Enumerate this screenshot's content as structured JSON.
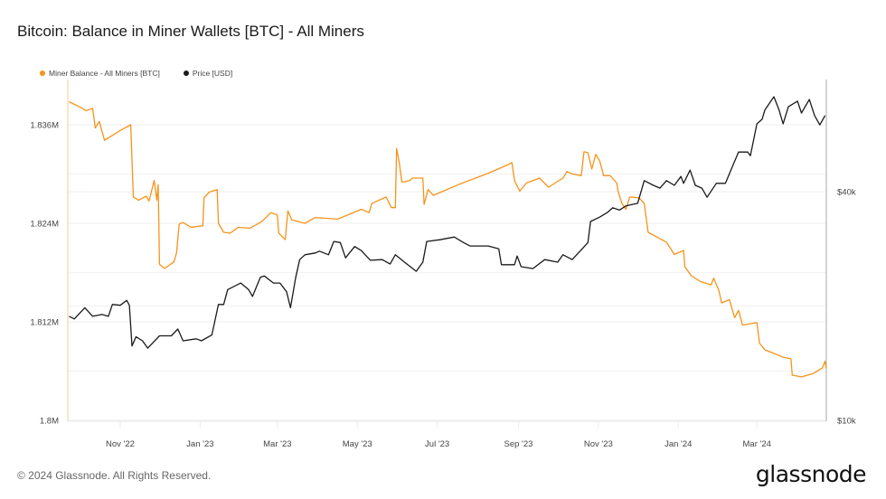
{
  "title": "Bitcoin: Balance in Miner Wallets [BTC] - All Miners",
  "footer": "© 2024 Glassnode. All Rights Reserved.",
  "logo": "glassnode",
  "chart_data": {
    "type": "line",
    "title": "Bitcoin: Balance in Miner Wallets [BTC] - All Miners",
    "legend_position": "top-left",
    "grid": true,
    "xlim": [
      "2022-09-22",
      "2024-04-23"
    ],
    "x_ticks": [
      {
        "date": "2022-11-01",
        "label": "Nov '22"
      },
      {
        "date": "2023-01-01",
        "label": "Jan '23"
      },
      {
        "date": "2023-03-01",
        "label": "Mar '23"
      },
      {
        "date": "2023-05-01",
        "label": "May '23"
      },
      {
        "date": "2023-07-01",
        "label": "Jul '23"
      },
      {
        "date": "2023-09-01",
        "label": "Sep '23"
      },
      {
        "date": "2023-11-01",
        "label": "Nov '23"
      },
      {
        "date": "2024-01-01",
        "label": "Jan '24"
      },
      {
        "date": "2024-03-01",
        "label": "Mar '24"
      }
    ],
    "y_left": {
      "scale": "linear",
      "unit": "M BTC",
      "ylim": [
        1.8,
        1.8415
      ],
      "ticks": [
        {
          "value": 1.8,
          "label": "1.8M"
        },
        {
          "value": 1.812,
          "label": "1.812M"
        },
        {
          "value": 1.824,
          "label": "1.824M"
        },
        {
          "value": 1.836,
          "label": "1.836M"
        }
      ],
      "gridlines": [
        1.8,
        1.806,
        1.812,
        1.818,
        1.824,
        1.83,
        1.836
      ]
    },
    "y_right": {
      "scale": "log",
      "unit": "USD",
      "ylim": [
        10000,
        79000
      ],
      "ticks": [
        {
          "value": 10000,
          "label": "$10k"
        },
        {
          "value": 40000,
          "label": "$40k"
        }
      ],
      "gridlines": [
        20000,
        40000
      ]
    },
    "series": [
      {
        "name": "Miner Balance - All Miners [BTC]",
        "axis": "left",
        "color": "#f7931a",
        "points": [
          [
            "2022-09-23",
            1.8388
          ],
          [
            "2022-10-02",
            1.8381
          ],
          [
            "2022-10-06",
            1.8377
          ],
          [
            "2022-10-11",
            1.838
          ],
          [
            "2022-10-13",
            1.8356
          ],
          [
            "2022-10-16",
            1.8364
          ],
          [
            "2022-10-20",
            1.8341
          ],
          [
            "2022-10-26",
            1.8347
          ],
          [
            "2022-11-01",
            1.8353
          ],
          [
            "2022-11-09",
            1.836
          ],
          [
            "2022-11-11",
            1.8272
          ],
          [
            "2022-11-15",
            1.8268
          ],
          [
            "2022-11-21",
            1.8273
          ],
          [
            "2022-11-23",
            1.8267
          ],
          [
            "2022-11-27",
            1.8292
          ],
          [
            "2022-11-29",
            1.8268
          ],
          [
            "2022-11-30",
            1.8287
          ],
          [
            "2022-12-01",
            1.819
          ],
          [
            "2022-12-05",
            1.8185
          ],
          [
            "2022-12-12",
            1.8193
          ],
          [
            "2022-12-14",
            1.8204
          ],
          [
            "2022-12-16",
            1.8239
          ],
          [
            "2022-12-19",
            1.8241
          ],
          [
            "2022-12-25",
            1.8235
          ],
          [
            "2023-01-03",
            1.8237
          ],
          [
            "2023-01-04",
            1.8271
          ],
          [
            "2023-01-08",
            1.8278
          ],
          [
            "2023-01-14",
            1.8281
          ],
          [
            "2023-01-15",
            1.824
          ],
          [
            "2023-01-19",
            1.8229
          ],
          [
            "2023-01-24",
            1.8228
          ],
          [
            "2023-01-30",
            1.8235
          ],
          [
            "2023-02-08",
            1.8234
          ],
          [
            "2023-02-17",
            1.8242
          ],
          [
            "2023-02-24",
            1.8253
          ],
          [
            "2023-03-01",
            1.825
          ],
          [
            "2023-03-02",
            1.8228
          ],
          [
            "2023-03-07",
            1.822
          ],
          [
            "2023-03-09",
            1.8255
          ],
          [
            "2023-03-12",
            1.8244
          ],
          [
            "2023-03-22",
            1.824
          ],
          [
            "2023-03-30",
            1.8247
          ],
          [
            "2023-04-16",
            1.8245
          ],
          [
            "2023-05-04",
            1.8257
          ],
          [
            "2023-05-10",
            1.8253
          ],
          [
            "2023-05-12",
            1.8264
          ],
          [
            "2023-05-23",
            1.8272
          ],
          [
            "2023-05-27",
            1.8259
          ],
          [
            "2023-05-30",
            1.8259
          ],
          [
            "2023-05-31",
            1.8331
          ],
          [
            "2023-06-02",
            1.8314
          ],
          [
            "2023-06-04",
            1.829
          ],
          [
            "2023-06-10",
            1.8292
          ],
          [
            "2023-06-12",
            1.8295
          ],
          [
            "2023-06-20",
            1.8295
          ],
          [
            "2023-06-21",
            1.8263
          ],
          [
            "2023-06-24",
            1.8281
          ],
          [
            "2023-06-28",
            1.8274
          ],
          [
            "2023-07-17",
            1.8287
          ],
          [
            "2023-08-09",
            1.8301
          ],
          [
            "2023-08-25",
            1.8312
          ],
          [
            "2023-08-27",
            1.8314
          ],
          [
            "2023-08-29",
            1.8292
          ],
          [
            "2023-09-02",
            1.8279
          ],
          [
            "2023-09-07",
            1.8289
          ],
          [
            "2023-09-17",
            1.8295
          ],
          [
            "2023-09-24",
            1.8284
          ],
          [
            "2023-10-05",
            1.8295
          ],
          [
            "2023-10-08",
            1.8303
          ],
          [
            "2023-10-12",
            1.83
          ],
          [
            "2023-10-19",
            1.8298
          ],
          [
            "2023-10-21",
            1.8327
          ],
          [
            "2023-10-24",
            1.8326
          ],
          [
            "2023-10-27",
            1.8306
          ],
          [
            "2023-10-30",
            1.8324
          ],
          [
            "2023-11-02",
            1.8316
          ],
          [
            "2023-11-05",
            1.8298
          ],
          [
            "2023-11-10",
            1.8298
          ],
          [
            "2023-11-15",
            1.8289
          ],
          [
            "2023-11-16",
            1.8279
          ],
          [
            "2023-11-19",
            1.8264
          ],
          [
            "2023-11-22",
            1.8257
          ],
          [
            "2023-11-25",
            1.8272
          ],
          [
            "2023-12-02",
            1.8271
          ],
          [
            "2023-12-06",
            1.8264
          ],
          [
            "2023-12-09",
            1.8229
          ],
          [
            "2023-12-16",
            1.8223
          ],
          [
            "2023-12-23",
            1.8217
          ],
          [
            "2023-12-29",
            1.8202
          ],
          [
            "2024-01-05",
            1.8207
          ],
          [
            "2024-01-06",
            1.8187
          ],
          [
            "2024-01-11",
            1.8176
          ],
          [
            "2024-01-18",
            1.8169
          ],
          [
            "2024-01-26",
            1.8165
          ],
          [
            "2024-01-28",
            1.8173
          ],
          [
            "2024-02-01",
            1.8158
          ],
          [
            "2024-02-03",
            1.8143
          ],
          [
            "2024-02-09",
            1.8147
          ],
          [
            "2024-02-13",
            1.8125
          ],
          [
            "2024-02-16",
            1.8134
          ],
          [
            "2024-02-19",
            1.8116
          ],
          [
            "2024-03-01",
            1.8119
          ],
          [
            "2024-03-03",
            1.8094
          ],
          [
            "2024-03-07",
            1.8086
          ],
          [
            "2024-03-21",
            1.8077
          ],
          [
            "2024-03-27",
            1.8075
          ],
          [
            "2024-03-28",
            1.8055
          ],
          [
            "2024-04-04",
            1.8053
          ],
          [
            "2024-04-13",
            1.8057
          ],
          [
            "2024-04-20",
            1.8064
          ],
          [
            "2024-04-22",
            1.8072
          ],
          [
            "2024-04-23",
            1.8063
          ]
        ]
      },
      {
        "name": "Price [USD]",
        "axis": "right",
        "color": "#1a1a1a",
        "points": [
          [
            "2022-09-23",
            18800
          ],
          [
            "2022-09-27",
            18500
          ],
          [
            "2022-10-05",
            19800
          ],
          [
            "2022-10-11",
            18800
          ],
          [
            "2022-10-18",
            19000
          ],
          [
            "2022-10-23",
            18800
          ],
          [
            "2022-10-26",
            20200
          ],
          [
            "2022-11-01",
            20100
          ],
          [
            "2022-11-06",
            20700
          ],
          [
            "2022-11-08",
            20100
          ],
          [
            "2022-11-10",
            15700
          ],
          [
            "2022-11-13",
            16600
          ],
          [
            "2022-11-18",
            16200
          ],
          [
            "2022-11-22",
            15500
          ],
          [
            "2022-12-01",
            16700
          ],
          [
            "2022-12-10",
            16700
          ],
          [
            "2022-12-15",
            17400
          ],
          [
            "2022-12-19",
            16200
          ],
          [
            "2022-12-29",
            16400
          ],
          [
            "2023-01-02",
            16200
          ],
          [
            "2023-01-10",
            16800
          ],
          [
            "2023-01-15",
            20200
          ],
          [
            "2023-01-19",
            20200
          ],
          [
            "2023-01-22",
            22100
          ],
          [
            "2023-02-01",
            23000
          ],
          [
            "2023-02-07",
            22100
          ],
          [
            "2023-02-10",
            21200
          ],
          [
            "2023-02-16",
            23800
          ],
          [
            "2023-02-19",
            24000
          ],
          [
            "2023-02-26",
            23000
          ],
          [
            "2023-03-03",
            23000
          ],
          [
            "2023-03-08",
            21800
          ],
          [
            "2023-03-11",
            19800
          ],
          [
            "2023-03-15",
            23800
          ],
          [
            "2023-03-18",
            26500
          ],
          [
            "2023-03-22",
            27300
          ],
          [
            "2023-03-30",
            27600
          ],
          [
            "2023-04-02",
            27900
          ],
          [
            "2023-04-09",
            27300
          ],
          [
            "2023-04-13",
            29600
          ],
          [
            "2023-04-18",
            29400
          ],
          [
            "2023-04-22",
            26800
          ],
          [
            "2023-04-29",
            28700
          ],
          [
            "2023-05-04",
            28000
          ],
          [
            "2023-05-11",
            26400
          ],
          [
            "2023-05-20",
            26500
          ],
          [
            "2023-05-26",
            25800
          ],
          [
            "2023-05-30",
            27300
          ],
          [
            "2023-06-06",
            26100
          ],
          [
            "2023-06-15",
            24700
          ],
          [
            "2023-06-20",
            26100
          ],
          [
            "2023-06-23",
            29600
          ],
          [
            "2023-07-03",
            29900
          ],
          [
            "2023-07-14",
            30400
          ],
          [
            "2023-07-21",
            29400
          ],
          [
            "2023-07-26",
            28800
          ],
          [
            "2023-08-09",
            28800
          ],
          [
            "2023-08-17",
            28300
          ],
          [
            "2023-08-19",
            25700
          ],
          [
            "2023-08-29",
            25700
          ],
          [
            "2023-08-31",
            27100
          ],
          [
            "2023-09-03",
            25400
          ],
          [
            "2023-09-12",
            25100
          ],
          [
            "2023-09-21",
            26500
          ],
          [
            "2023-10-01",
            26100
          ],
          [
            "2023-10-05",
            27300
          ],
          [
            "2023-10-12",
            26500
          ],
          [
            "2023-10-18",
            27900
          ],
          [
            "2023-10-24",
            29400
          ],
          [
            "2023-10-26",
            33400
          ],
          [
            "2023-11-02",
            34300
          ],
          [
            "2023-11-08",
            35300
          ],
          [
            "2023-11-12",
            36300
          ],
          [
            "2023-11-17",
            35800
          ],
          [
            "2023-11-22",
            36700
          ],
          [
            "2023-12-01",
            37300
          ],
          [
            "2023-12-06",
            42800
          ],
          [
            "2023-12-13",
            41600
          ],
          [
            "2023-12-18",
            40900
          ],
          [
            "2023-12-23",
            42800
          ],
          [
            "2023-12-29",
            41600
          ],
          [
            "2024-01-03",
            43900
          ],
          [
            "2024-01-05",
            42100
          ],
          [
            "2024-01-10",
            45600
          ],
          [
            "2024-01-14",
            41600
          ],
          [
            "2024-01-19",
            40900
          ],
          [
            "2024-01-23",
            38700
          ],
          [
            "2024-01-30",
            42100
          ],
          [
            "2024-02-06",
            42100
          ],
          [
            "2024-02-12",
            47200
          ],
          [
            "2024-02-16",
            50900
          ],
          [
            "2024-02-23",
            50900
          ],
          [
            "2024-02-25",
            49800
          ],
          [
            "2024-03-01",
            60400
          ],
          [
            "2024-03-05",
            62100
          ],
          [
            "2024-03-07",
            65600
          ],
          [
            "2024-03-14",
            71200
          ],
          [
            "2024-03-18",
            65600
          ],
          [
            "2024-03-21",
            60400
          ],
          [
            "2024-03-25",
            67000
          ],
          [
            "2024-04-01",
            69300
          ],
          [
            "2024-04-04",
            64500
          ],
          [
            "2024-04-10",
            70000
          ],
          [
            "2024-04-14",
            63500
          ],
          [
            "2024-04-18",
            60000
          ],
          [
            "2024-04-22",
            63500
          ]
        ]
      }
    ]
  }
}
